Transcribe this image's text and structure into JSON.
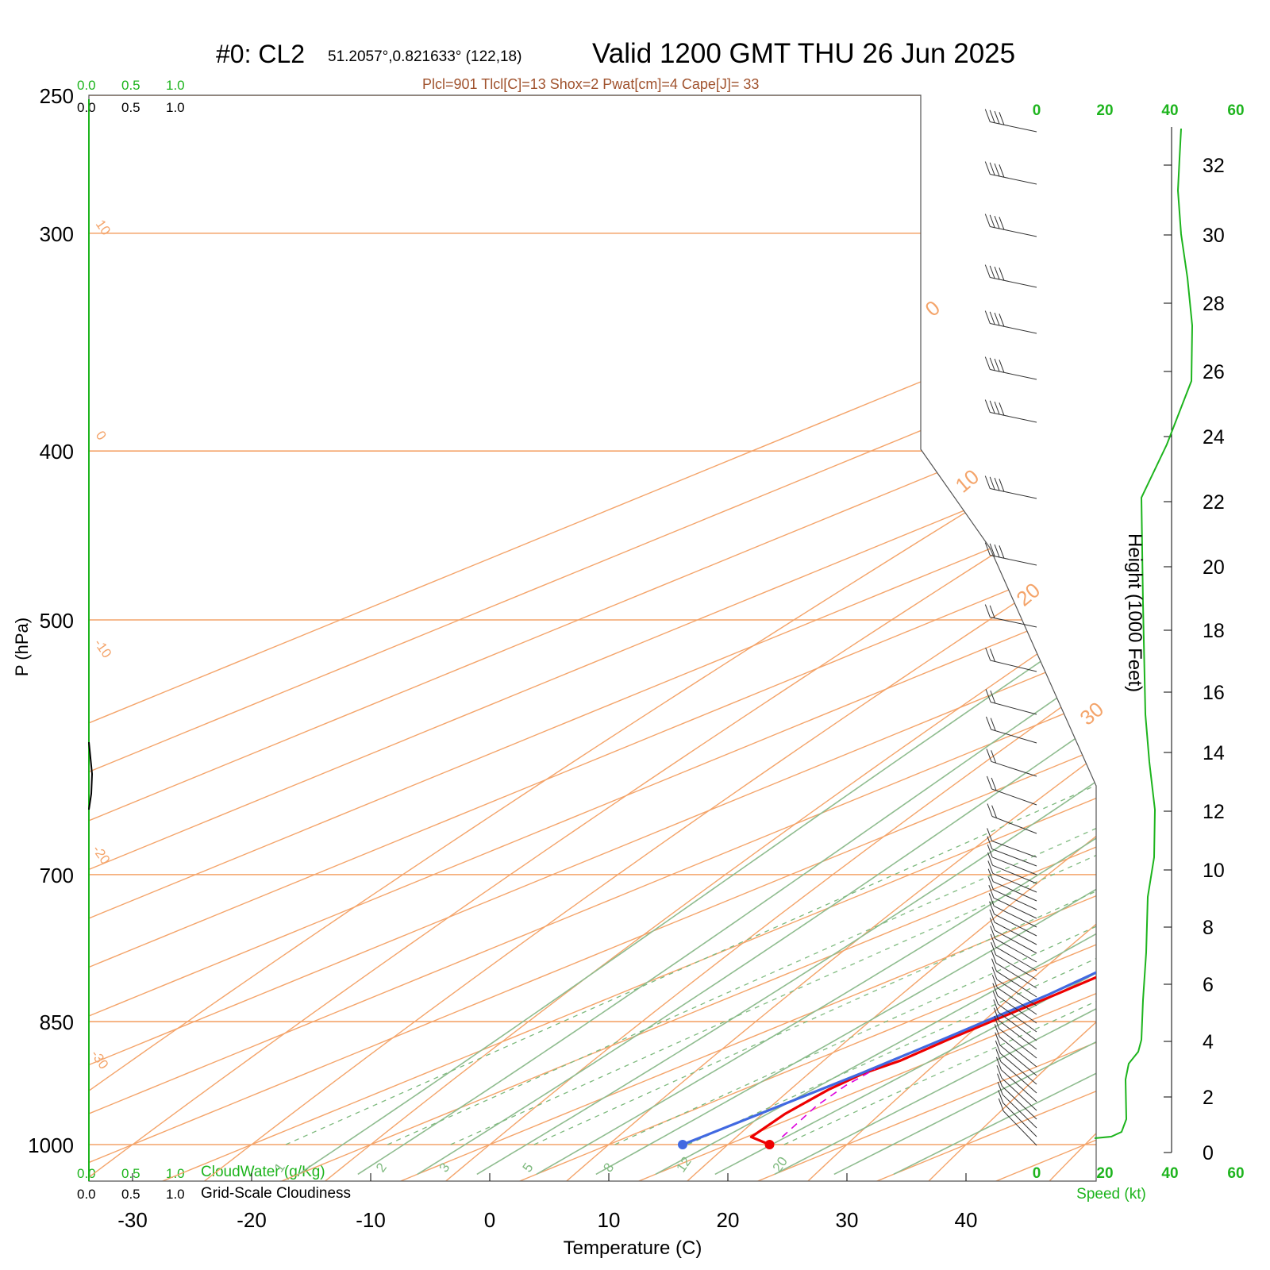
{
  "header": {
    "title_left": "#0: CL2",
    "coords": "51.2057°,0.821633° (122,18)",
    "title_right": "Valid 1200 GMT THU 26 Jun 2025",
    "indices": "Plcl=901 Tlcl[C]=13 Shox=2 Pwat[cm]=4 Cape[J]= 33"
  },
  "colors": {
    "temperature": "#ee0000",
    "dewpoint": "#4169e1",
    "parcel": "#dd00dd",
    "isotherm": "#f4a46a",
    "moist_adiabat": "#8fbc8f",
    "mixing_ratio": "#7fba7f",
    "speed": "#1db41d",
    "text_accent": "#a0522d"
  },
  "cloud_scales": {
    "top_green": [
      "0.0",
      "0.5",
      "1.0"
    ],
    "top_black": [
      "0.0",
      "0.5",
      "1.0"
    ],
    "bottom_green": [
      "0.0",
      "0.5",
      "1.0"
    ],
    "bottom_black": [
      "0.0",
      "0.5",
      "1.0"
    ],
    "cloud_water_label": "CloudWater (g/Kg)",
    "cloudiness_label": "Grid-Scale Cloudiness"
  },
  "speed_axis": {
    "ticks_top": [
      "0",
      "20",
      "40",
      "60"
    ],
    "ticks_bottom": [
      "0",
      "20",
      "40",
      "60"
    ],
    "label": "Speed (kt)"
  },
  "height_axis": {
    "label": "Height (1000 Feet)",
    "ticks": [
      "0",
      "2",
      "4",
      "6",
      "8",
      "10",
      "12",
      "14",
      "16",
      "18",
      "20",
      "22",
      "24",
      "26",
      "28",
      "30",
      "32"
    ]
  },
  "isotherm_labels": [
    "10",
    "0",
    "-10",
    "-20",
    "-30",
    "0",
    "10",
    "20",
    "30"
  ],
  "mixing_ratio_labels": [
    "1",
    "2",
    "3",
    "5",
    "8",
    "12",
    "20"
  ],
  "chart_data": {
    "type": "line",
    "xlabel": "Temperature (C)",
    "ylabel": "P (hPa)",
    "x_ticks": [
      "-30",
      "-20",
      "-10",
      "0",
      "10",
      "20",
      "30",
      "40"
    ],
    "y_ticks": [
      "250",
      "300",
      "400",
      "500",
      "700",
      "850",
      "1000"
    ],
    "xlim": [
      -33.5,
      36
    ],
    "ylim": [
      1030,
      250
    ],
    "y_scale": "log",
    "skew_deg_per_log": 155,
    "series": [
      {
        "key": "temperature",
        "points": [
          [
            23.5,
            1000
          ],
          [
            20.4,
            990
          ],
          [
            18.5,
            960
          ],
          [
            17.2,
            930
          ],
          [
            16.8,
            910
          ],
          [
            17.3,
            895
          ],
          [
            17.0,
            870
          ],
          [
            16.8,
            820
          ],
          [
            16.5,
            775
          ],
          [
            15.5,
            735
          ],
          [
            14.0,
            690
          ],
          [
            12.6,
            645
          ],
          [
            11.2,
            600
          ],
          [
            10.4,
            565
          ],
          [
            9.0,
            520
          ],
          [
            8.3,
            500
          ],
          [
            6.6,
            470
          ],
          [
            5.4,
            445
          ],
          [
            3.7,
            420
          ],
          [
            1.5,
            400
          ],
          [
            -0.7,
            380
          ],
          [
            -2.5,
            360
          ],
          [
            -3.8,
            340
          ],
          [
            -5.6,
            320
          ],
          [
            -6.8,
            300
          ],
          [
            -7.0,
            285
          ],
          [
            -7.4,
            272
          ],
          [
            -7.6,
            262
          ]
        ]
      },
      {
        "key": "dewpoint",
        "points": [
          [
            16.2,
            1000
          ],
          [
            16.4,
            955
          ],
          [
            16.6,
            910
          ],
          [
            16.5,
            870
          ],
          [
            16.2,
            820
          ],
          [
            15.2,
            775
          ],
          [
            14.2,
            735
          ],
          [
            13.0,
            690
          ],
          [
            11.6,
            645
          ],
          [
            10.8,
            605
          ],
          [
            10.0,
            575
          ],
          [
            8.2,
            545
          ],
          [
            3.5,
            512
          ],
          [
            -3.3,
            478
          ],
          [
            -9.0,
            462
          ],
          [
            -9.2,
            425
          ],
          [
            -10.5,
            403
          ],
          [
            -12.8,
            380
          ],
          [
            -13.8,
            360
          ],
          [
            -14.3,
            340
          ],
          [
            -14.7,
            320
          ],
          [
            -15.0,
            300
          ],
          [
            -16.5,
            282
          ],
          [
            -17.8,
            268
          ],
          [
            -18.3,
            262
          ]
        ]
      },
      {
        "key": "parcel",
        "dash": "9,7",
        "points": [
          [
            23.0,
            990
          ],
          [
            19.5,
            950
          ],
          [
            17.8,
            925
          ],
          [
            16.9,
            905
          ]
        ]
      }
    ]
  }
}
